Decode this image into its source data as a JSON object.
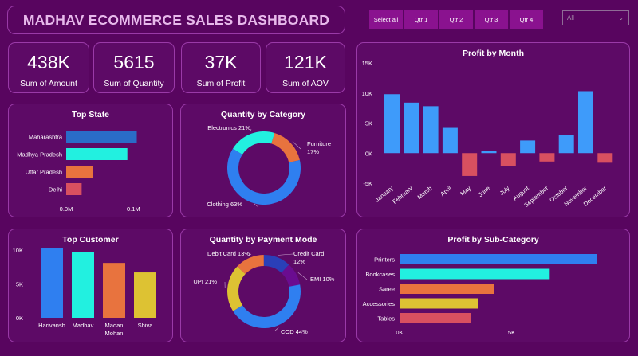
{
  "header": {
    "title": "MADHAV ECOMMERCE SALES DASHBOARD",
    "quarters": [
      "Select all",
      "Qtr 1",
      "Qtr 2",
      "Qtr 3",
      "Qtr 4"
    ],
    "dropdown_value": "All"
  },
  "kpis": [
    {
      "value": "438K",
      "label": "Sum of Amount"
    },
    {
      "value": "5615",
      "label": "Sum of Quantity"
    },
    {
      "value": "37K",
      "label": "Sum of Profit"
    },
    {
      "value": "121K",
      "label": "Sum of AOV"
    }
  ],
  "colors": {
    "blue": "#2f7ff0",
    "cyan": "#22f0e0",
    "orange": "#e8733e",
    "yellow": "#ddc233",
    "red": "#d85060",
    "navy": "#2a3fb8",
    "purple": "#6a0c90",
    "lightblue": "#3e9bfa"
  },
  "chart_data": [
    {
      "id": "top_state",
      "type": "bar",
      "orientation": "horizontal",
      "title": "Top State",
      "categories": [
        "Maharashtra",
        "Madhya Pradesh",
        "Uttar Pradesh",
        "Delhi"
      ],
      "values": [
        0.105,
        0.091,
        0.04,
        0.023
      ],
      "colors": [
        "#2a6cc8",
        "#22f0e0",
        "#e8733e",
        "#d85060"
      ],
      "xlim": [
        0,
        0.14
      ],
      "xticks": [
        {
          "v": 0,
          "label": "0.0M"
        },
        {
          "v": 0.1,
          "label": "0.1M"
        }
      ]
    },
    {
      "id": "qty_category",
      "type": "pie",
      "donut": true,
      "title": "Quantity by Category",
      "labels": [
        "Electronics",
        "Furniture",
        "Clothing"
      ],
      "values": [
        21,
        17,
        63
      ],
      "colors": [
        "#22f0e0",
        "#e8733e",
        "#2f7ff0"
      ],
      "display_labels": [
        [
          "Electronics 21%"
        ],
        [
          "Furniture",
          "17%"
        ],
        [
          "Clothing 63%"
        ]
      ]
    },
    {
      "id": "top_customer",
      "type": "bar",
      "title": "Top Customer",
      "categories": [
        "Harivansh",
        "Madhav",
        "Madan Mohan",
        "Shiva"
      ],
      "display_categories": [
        [
          "Harivansh"
        ],
        [
          "Madhav"
        ],
        [
          "Madan",
          "Mohan"
        ],
        [
          "Shiva"
        ]
      ],
      "values": [
        10300,
        9700,
        8100,
        6700
      ],
      "colors": [
        "#2f7ff0",
        "#22f0e0",
        "#e8733e",
        "#ddc233"
      ],
      "ylim": [
        0,
        10000
      ],
      "yticks": [
        {
          "v": 0,
          "label": "0K"
        },
        {
          "v": 5000,
          "label": "5K"
        },
        {
          "v": 10000,
          "label": "10K"
        }
      ]
    },
    {
      "id": "qty_payment",
      "type": "pie",
      "donut": true,
      "title": "Quantity by Payment Mode",
      "labels": [
        "Debit Card",
        "Credit Card",
        "EMI",
        "COD",
        "UPI"
      ],
      "values": [
        13,
        12,
        10,
        44,
        21
      ],
      "colors": [
        "#e8733e",
        "#2a3fb8",
        "#6a0c90",
        "#2f7ff0",
        "#ddc233"
      ],
      "display_labels": [
        [
          "Debit Card 13%"
        ],
        [
          "Credit Card",
          "12%"
        ],
        [
          "EMI 10%"
        ],
        [
          "COD 44%"
        ],
        [
          "UPI 21%"
        ]
      ]
    },
    {
      "id": "profit_month",
      "type": "bar",
      "title": "Profit by Month",
      "categories": [
        "January",
        "February",
        "March",
        "April",
        "May",
        "June",
        "July",
        "August",
        "September",
        "October",
        "November",
        "December"
      ],
      "values": [
        9800,
        8400,
        7800,
        4200,
        -3800,
        400,
        -2200,
        2100,
        -1400,
        3000,
        10300,
        -1600
      ],
      "positive_color": "#3e9bfa",
      "negative_color": "#d85060",
      "ylim": [
        -5000,
        15000
      ],
      "yticks": [
        {
          "v": -5000,
          "label": "-5K"
        },
        {
          "v": 0,
          "label": "0K"
        },
        {
          "v": 5000,
          "label": "5K"
        },
        {
          "v": 10000,
          "label": "10K"
        },
        {
          "v": 15000,
          "label": "15K"
        }
      ]
    },
    {
      "id": "profit_subcat",
      "type": "bar",
      "orientation": "horizontal",
      "title": "Profit by Sub-Category",
      "categories": [
        "Printers",
        "Bookcases",
        "Saree",
        "Accessories",
        "Tables"
      ],
      "values": [
        8800,
        6700,
        4200,
        3500,
        3200
      ],
      "colors": [
        "#2f7ff0",
        "#22f0e0",
        "#e8733e",
        "#ddc233",
        "#d85060"
      ],
      "xlim": [
        0,
        9500
      ],
      "xticks": [
        {
          "v": 0,
          "label": "0K"
        },
        {
          "v": 5000,
          "label": "5K"
        }
      ],
      "more_indicator": "..."
    }
  ]
}
